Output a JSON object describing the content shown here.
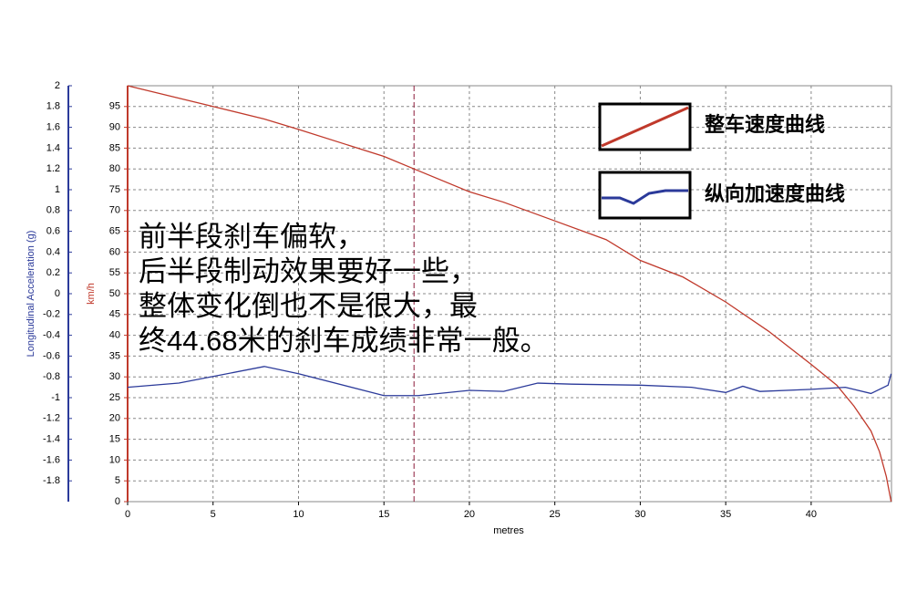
{
  "chart_data": {
    "type": "line",
    "xlabel": "metres",
    "ylabel": "km/h",
    "y2label": "Longitudinal Acceleration (g)",
    "annotation": [
      "前半段刹车偏软，",
      "后半段制动效果要好一些，",
      "整体变化倒也不是很大，最",
      "终44.68米的刹车成绩非常一般。"
    ],
    "xlim": [
      0,
      44.7
    ],
    "xticks": [
      0,
      5,
      10,
      15,
      20,
      25,
      30,
      35,
      40
    ],
    "ylim": [
      0,
      100
    ],
    "yticks": [
      0,
      5,
      10,
      15,
      20,
      25,
      30,
      35,
      40,
      45,
      50,
      55,
      60,
      65,
      70,
      75,
      80,
      85,
      90,
      95
    ],
    "y2lim": [
      -2,
      2
    ],
    "y2ticks": [
      -1.8,
      -1.6,
      -1.4,
      -1.2,
      -1,
      -0.8,
      -0.6,
      -0.4,
      -0.2,
      0,
      0.2,
      0.4,
      0.6,
      0.8,
      1,
      1.2,
      1.4,
      1.6,
      1.8,
      2
    ],
    "marker_x": 16.76,
    "grid": true,
    "series": [
      {
        "name": "整车速度曲线",
        "color": "#c0392b",
        "x": [
          0,
          5,
          8,
          10,
          15,
          16.76,
          20,
          22,
          25,
          28,
          30,
          32.5,
          35,
          37.5,
          40,
          41.5,
          42.5,
          43.5,
          44,
          44.4,
          44.68
        ],
        "values": [
          100,
          95,
          92,
          89.5,
          83,
          80,
          74.5,
          72,
          67.5,
          63,
          58,
          54,
          48,
          41,
          33,
          28,
          23,
          17,
          12,
          6,
          0
        ]
      },
      {
        "name": "纵向加速度曲线",
        "color": "#2b3a9a",
        "axis": "y2",
        "x": [
          0,
          3,
          8,
          10,
          15,
          17,
          20,
          22,
          24,
          26,
          30,
          33,
          35,
          36,
          37,
          40,
          42,
          43.5,
          44.5,
          44.68
        ],
        "values": [
          -0.9,
          -0.86,
          -0.7,
          -0.77,
          -0.98,
          -0.98,
          -0.93,
          -0.94,
          -0.86,
          -0.87,
          -0.88,
          -0.9,
          -0.95,
          -0.89,
          -0.94,
          -0.92,
          -0.9,
          -0.96,
          -0.88,
          -0.77
        ]
      }
    ]
  }
}
